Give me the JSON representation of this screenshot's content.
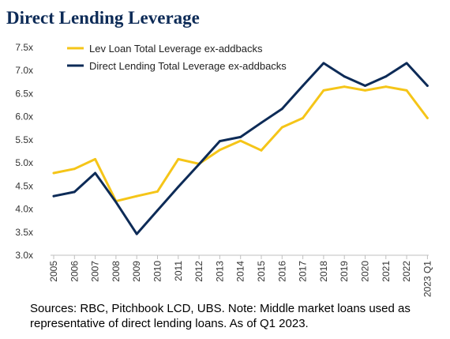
{
  "title": "Direct Lending Leverage",
  "footnote": "Sources: RBC, Pitchbook LCD, UBS. Note: Middle market loans used as representative of direct lending loans. As of Q1 2023.",
  "chart_data": {
    "type": "line",
    "title": "Direct Lending Leverage",
    "xlabel": "",
    "ylabel": "",
    "categories": [
      "2005",
      "2006",
      "2007",
      "2008",
      "2009",
      "2010",
      "2011",
      "2012",
      "2013",
      "2014",
      "2015",
      "2016",
      "2017",
      "2018",
      "2019",
      "2020",
      "2021",
      "2022",
      "2023 Q1"
    ],
    "ylim": [
      3.0,
      7.5
    ],
    "yticks": [
      3.0,
      3.5,
      4.0,
      4.5,
      5.0,
      5.5,
      6.0,
      6.5,
      7.0,
      7.5
    ],
    "ytick_labels": [
      "3.0x",
      "3.5x",
      "4.0x",
      "4.5x",
      "5.0x",
      "5.5x",
      "6.0x",
      "6.5x",
      "7.0x",
      "7.5x"
    ],
    "grid": false,
    "legend_position": "top-left",
    "series": [
      {
        "name": "Lev Loan Total Leverage ex-addbacks",
        "color": "#f5c518",
        "values": [
          4.78,
          4.87,
          5.08,
          4.17,
          4.28,
          4.38,
          5.08,
          4.98,
          5.28,
          5.48,
          5.27,
          5.77,
          5.97,
          6.57,
          6.65,
          6.57,
          6.65,
          6.57,
          5.97
        ]
      },
      {
        "name": "Direct Lending Total Leverage ex-addbacks",
        "color": "#0d2b57",
        "values": [
          4.28,
          4.37,
          4.78,
          4.15,
          3.46,
          3.97,
          4.48,
          4.97,
          5.47,
          5.56,
          5.87,
          6.17,
          6.67,
          7.16,
          6.87,
          6.67,
          6.87,
          7.16,
          6.67
        ]
      }
    ]
  }
}
